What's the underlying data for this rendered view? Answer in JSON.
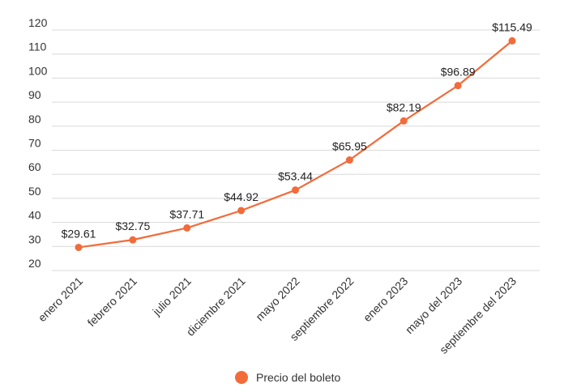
{
  "colors": {
    "series": "#F26B3A",
    "grid": "#d9d9d9"
  },
  "chart_data": {
    "type": "line",
    "title": "",
    "xlabel": "",
    "ylabel": "",
    "ylim": [
      20,
      120
    ],
    "yticks": [
      20,
      30,
      40,
      50,
      60,
      70,
      80,
      90,
      100,
      110,
      120
    ],
    "grid": true,
    "legend_position": "bottom",
    "categories": [
      "enero 2021",
      "febrero 2021",
      "julio 2021",
      "diciembre 2021",
      "mayo 2022",
      "septiembre 2022",
      "enero 2023",
      "mayo del 2023",
      "septiembre del 2023"
    ],
    "series": [
      {
        "name": "Precio del boleto",
        "values": [
          29.61,
          32.75,
          37.71,
          44.92,
          53.44,
          65.95,
          82.19,
          96.89,
          115.49
        ],
        "labels": [
          "$29.61",
          "$32.75",
          "$37.71",
          "$44.92",
          "$53.44",
          "$65.95",
          "$82.19",
          "$96.89",
          "$115.49"
        ]
      }
    ]
  }
}
